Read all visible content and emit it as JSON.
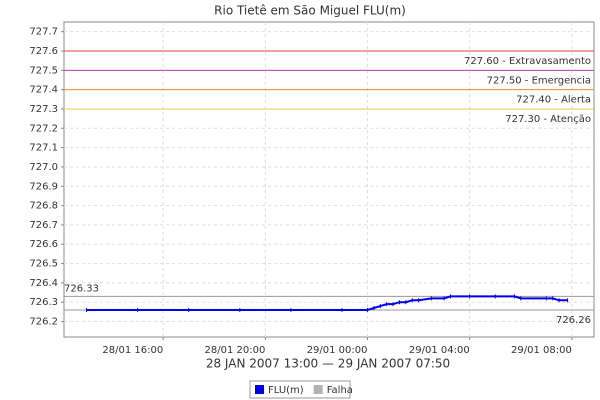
{
  "chart_data": {
    "type": "line",
    "title": "Rio Tietê em São Miguel FLU(m)",
    "x_label": "28 JAN 2007 13:00 — 29 JAN 2007 07:50",
    "xlim": [
      "28/01 12:07",
      "29/01 08:52"
    ],
    "xticks": [
      "28/01 16:00",
      "28/01 20:00",
      "29/01 00:00",
      "29/01 04:00",
      "29/01 08:00"
    ],
    "ylim": [
      726.12,
      727.75
    ],
    "yticks": [
      726.2,
      726.3,
      726.4,
      726.5,
      726.6,
      726.7,
      726.8,
      726.9,
      {
        "value": 727,
        "label": "727.0"
      },
      727.1,
      727.2,
      727.3,
      727.4,
      727.5,
      727.6,
      727.7
    ],
    "grid": true,
    "series": [
      {
        "name": "FLU(m)",
        "color": "#0000ee",
        "x": [
          "28/01 13:00",
          "28/01 15:00",
          "28/01 17:00",
          "28/01 19:00",
          "28/01 21:00",
          "28/01 23:00",
          "29/01 00:00",
          "29/01 00:15",
          "29/01 00:30",
          "29/01 00:45",
          "29/01 01:00",
          "29/01 01:15",
          "29/01 01:30",
          "29/01 01:45",
          "29/01 02:00",
          "29/01 02:30",
          "29/01 03:00",
          "29/01 03:15",
          "29/01 04:00",
          "29/01 05:00",
          "29/01 05:45",
          "29/01 06:00",
          "29/01 07:00",
          "29/01 07:15",
          "29/01 07:30",
          "29/01 07:50"
        ],
        "values": [
          726.26,
          726.26,
          726.26,
          726.26,
          726.26,
          726.26,
          726.26,
          726.27,
          726.28,
          726.29,
          726.29,
          726.3,
          726.3,
          726.31,
          726.31,
          726.32,
          726.32,
          726.33,
          726.33,
          726.33,
          726.33,
          726.32,
          726.32,
          726.32,
          726.31,
          726.31
        ]
      },
      {
        "name": "Falha",
        "color": "#b4b4b4",
        "x": [],
        "values": []
      }
    ],
    "thresholds": [
      {
        "value": 727.6,
        "label": "727.60 - Extravasamento",
        "color": "#e04040"
      },
      {
        "value": 727.5,
        "label": "727.50 - Emergencia",
        "color": "#b040b0"
      },
      {
        "value": 727.4,
        "label": "727.40 - Alerta",
        "color": "#e09030"
      },
      {
        "value": 727.3,
        "label": "727.30 - Atenção",
        "color": "#e0d040"
      }
    ],
    "max_line": {
      "value": 726.33,
      "label": "726.33",
      "color": "#999999"
    },
    "min_line": {
      "value": 726.26,
      "label": "726.26",
      "color": "#999999"
    }
  }
}
